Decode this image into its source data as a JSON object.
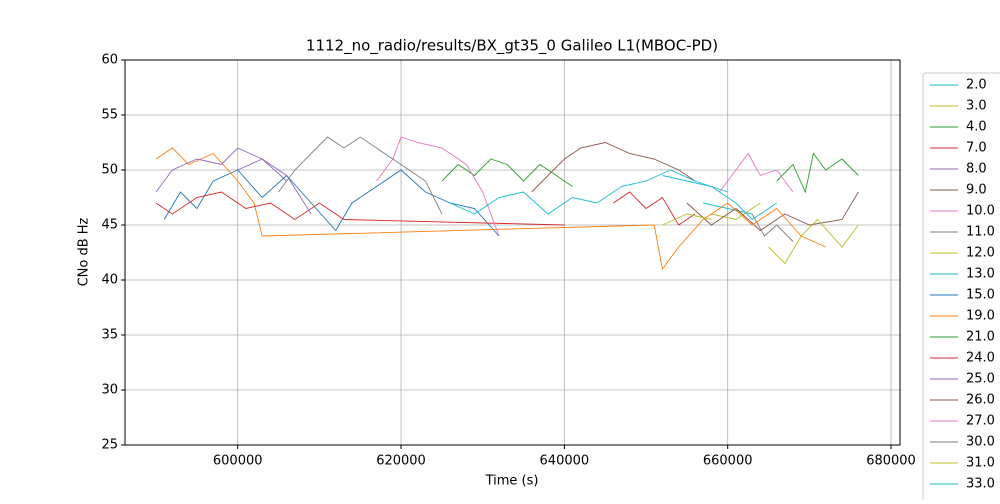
{
  "chart_data": {
    "type": "line",
    "title": "1112_no_radio/results/BX_gt35_0 Galileo L1(MBOC-PD)",
    "x_label": "Time (s)",
    "y_label": "CNo dB Hz",
    "xlim": [
      586200,
      681100
    ],
    "ylim": [
      25,
      60
    ],
    "xticks": [
      600000,
      620000,
      640000,
      660000,
      680000
    ],
    "yticks": [
      25,
      30,
      35,
      40,
      45,
      50,
      55,
      60
    ],
    "grid": true,
    "legend": "outside right",
    "series": [
      {
        "name": "2.0",
        "color": "#17becf",
        "x": [
          657000,
          660000,
          663000
        ],
        "values": [
          47,
          46.5,
          46
        ]
      },
      {
        "name": "3.0",
        "color": "#bcbd22",
        "x": [
          658000,
          661000,
          664000
        ],
        "values": [
          46,
          45.5,
          47
        ]
      },
      {
        "name": "4.0",
        "color": "#2ca02c",
        "x": [
          666000,
          668000,
          669500,
          670500,
          672000,
          674000,
          676000
        ],
        "values": [
          49,
          50.5,
          48,
          51.5,
          50,
          51,
          49.5
        ]
      },
      {
        "name": "7.0",
        "color": "#d62728",
        "x": [
          646000,
          648000,
          650000,
          652000,
          654000,
          656000
        ],
        "values": [
          47,
          48,
          46.5,
          47.5,
          45,
          46
        ]
      },
      {
        "name": "8.0",
        "color": "#9467bd",
        "x": [
          600000,
          603000,
          606000
        ],
        "values": [
          50,
          51,
          49
        ]
      },
      {
        "name": "9.0",
        "color": "#8c564b",
        "x": [
          655000,
          658000,
          661000,
          664000,
          667000,
          670000,
          674000,
          676000
        ],
        "values": [
          47,
          45,
          46.5,
          44.5,
          46,
          45,
          45.5,
          48
        ]
      },
      {
        "name": "10.0",
        "color": "#e377c2",
        "x": [
          659000,
          661000,
          662500,
          664000,
          666000,
          668000
        ],
        "values": [
          48,
          50,
          51.5,
          49.5,
          50,
          48
        ]
      },
      {
        "name": "11.0",
        "color": "#7f7f7f",
        "x": [
          663000,
          664500,
          666000,
          668000
        ],
        "values": [
          46,
          44,
          45,
          43.5
        ]
      },
      {
        "name": "12.0",
        "color": "#bcbd22",
        "x": [
          652000,
          655000,
          658000
        ],
        "values": [
          45,
          46,
          45.5
        ]
      },
      {
        "name": "13.0",
        "color": "#17becf",
        "x": [
          652000,
          655000,
          658000,
          661000,
          663000,
          666000
        ],
        "values": [
          49.5,
          49,
          48.5,
          47,
          45.5,
          47
        ]
      },
      {
        "name": "15.0",
        "color": "#1f77b4",
        "x": [
          591000,
          593000,
          595000,
          597000,
          600000,
          603000,
          606000,
          609000,
          612000,
          614000,
          617000,
          620000,
          623000,
          626000,
          629000,
          632000
        ],
        "values": [
          45.5,
          48,
          46.5,
          49,
          50,
          47.5,
          49.5,
          47,
          44.5,
          47,
          48.5,
          50,
          48,
          47,
          46.5,
          44
        ]
      },
      {
        "name": "19.0",
        "color": "#ff7f0e",
        "x": [
          590000,
          592000,
          594000,
          597000,
          600000,
          602000,
          603000,
          651000,
          652000,
          654000,
          657000,
          660000,
          663000,
          666000,
          669000,
          672000
        ],
        "values": [
          51,
          52,
          50.5,
          51.5,
          49,
          47,
          44,
          45,
          41,
          43,
          45.5,
          47,
          45,
          46.5,
          44,
          43
        ]
      },
      {
        "name": "21.0",
        "color": "#2ca02c",
        "x": [
          625000,
          627000,
          629000,
          631000,
          633000,
          635000,
          637000,
          639000,
          641000
        ],
        "values": [
          49,
          50.5,
          49.5,
          51,
          50.5,
          49,
          50.5,
          49.5,
          48.5
        ]
      },
      {
        "name": "24.0",
        "color": "#d62728",
        "x": [
          590000,
          592000,
          595000,
          598000,
          601000,
          604000,
          607000,
          610000,
          613000,
          640000
        ],
        "values": [
          47,
          46,
          47.5,
          48,
          46.5,
          47,
          45.5,
          47,
          45.5,
          45
        ]
      },
      {
        "name": "25.0",
        "color": "#9467bd",
        "x": [
          590000,
          592000,
          595000,
          598000,
          600000,
          603000,
          606000,
          609000
        ],
        "values": [
          48,
          50,
          51,
          50.5,
          52,
          51,
          49.5,
          46
        ]
      },
      {
        "name": "26.0",
        "color": "#8c564b",
        "x": [
          636000,
          638000,
          640000,
          642000,
          645000,
          648000,
          651000,
          654000,
          656000
        ],
        "values": [
          48,
          49.5,
          51,
          52,
          52.5,
          51.5,
          51,
          50,
          49
        ]
      },
      {
        "name": "27.0",
        "color": "#e377c2",
        "x": [
          617000,
          619000,
          620000,
          622000,
          625000,
          628000,
          630000,
          632000
        ],
        "values": [
          49,
          51,
          53,
          52.5,
          52,
          50.5,
          48,
          44
        ]
      },
      {
        "name": "30.0",
        "color": "#7f7f7f",
        "x": [
          605000,
          607000,
          609000,
          611000,
          613000,
          615000,
          617000,
          620000,
          623000,
          625000
        ],
        "values": [
          48,
          50,
          51.5,
          53,
          52,
          53,
          52,
          50.5,
          49,
          46
        ]
      },
      {
        "name": "31.0",
        "color": "#bcbd22",
        "x": [
          665000,
          667000,
          669000,
          671000,
          674000,
          676000
        ],
        "values": [
          43,
          41.5,
          44,
          45.5,
          43,
          45
        ]
      },
      {
        "name": "33.0",
        "color": "#17becf",
        "x": [
          626000,
          629000,
          632000,
          635000,
          638000,
          641000,
          644000,
          647000,
          650000,
          653000,
          656000,
          660000
        ],
        "values": [
          47,
          46,
          47.5,
          48,
          46,
          47.5,
          47,
          48.5,
          49,
          50,
          49,
          48
        ]
      }
    ]
  }
}
